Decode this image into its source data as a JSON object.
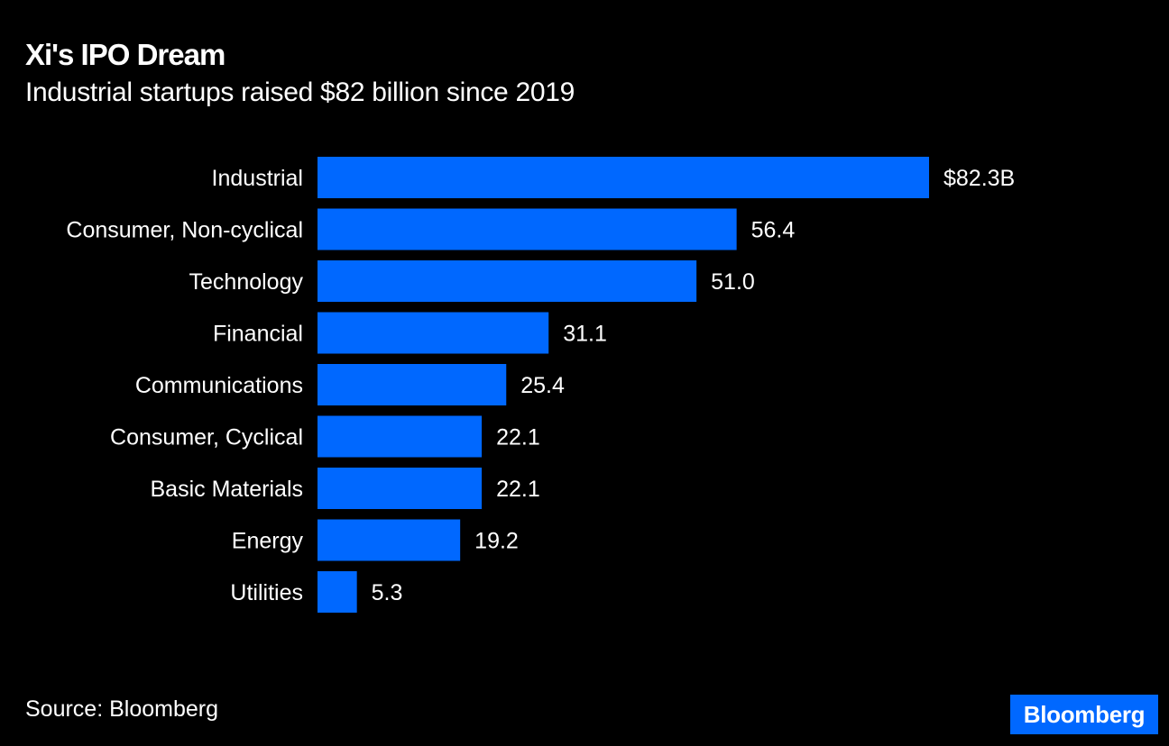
{
  "header": {
    "title": "Xi's IPO Dream",
    "subtitle": "Industrial startups raised $82 billion since 2019"
  },
  "footer": {
    "source": "Source: Bloomberg",
    "logo": "Bloomberg"
  },
  "colors": {
    "background": "#000000",
    "bar": "#0068ff",
    "logo_bg": "#0068ff",
    "text": "#ffffff"
  },
  "chart_data": {
    "type": "bar",
    "orientation": "horizontal",
    "title": "Xi's IPO Dream",
    "subtitle": "Industrial startups raised $82 billion since 2019",
    "xlabel": "",
    "ylabel": "",
    "unit": "billion USD",
    "grid": false,
    "legend": "none",
    "xlim": [
      0,
      82.3
    ],
    "categories": [
      "Industrial",
      "Consumer, Non-cyclical",
      "Technology",
      "Financial",
      "Communications",
      "Consumer, Cyclical",
      "Basic Materials",
      "Energy",
      "Utilities"
    ],
    "values": [
      82.3,
      56.4,
      51.0,
      31.1,
      25.4,
      22.1,
      22.1,
      19.2,
      5.3
    ],
    "value_labels": [
      "$82.3B",
      "56.4",
      "51.0",
      "31.1",
      "25.4",
      "22.1",
      "22.1",
      "19.2",
      "5.3"
    ],
    "source": "Source: Bloomberg"
  }
}
